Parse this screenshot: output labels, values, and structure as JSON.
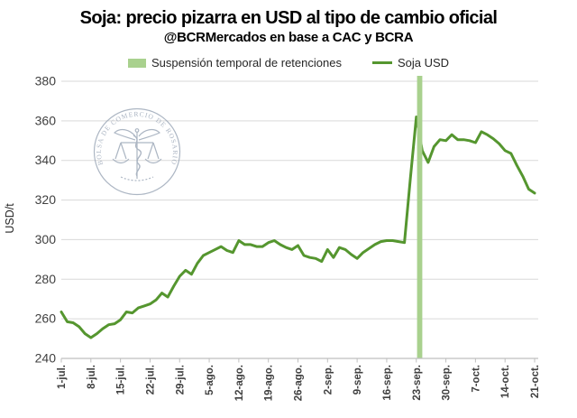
{
  "header": {
    "title": "Soja: precio pizarra en USD al tipo de cambio oficial",
    "subtitle": "@BCRMercados en base a CAC y BCRA"
  },
  "watermark": {
    "text": "BOLSA DE COMERCIO DE ROSARIO"
  },
  "colors": {
    "line": "#55962F",
    "band": "#A9D18E",
    "gridline": "#D9D9D9",
    "axis": "#BFBFBF",
    "tick": "#BFBFBF",
    "watermark": "#98A4B5"
  },
  "chart_data": {
    "type": "line",
    "title": "Soja: precio pizarra en USD al tipo de cambio oficial",
    "subtitle": "@BCRMercados en base a CAC y BCRA",
    "xlabel": "",
    "ylabel": "USD/t",
    "ylim": [
      240,
      380
    ],
    "yticks": [
      240,
      260,
      280,
      300,
      320,
      340,
      360,
      380
    ],
    "grid": true,
    "legend_position": "top",
    "xtick_every": 5,
    "xtick_labels": [
      "1-jul.",
      "8-jul.",
      "15-jul.",
      "22-jul.",
      "29-jul.",
      "5-ago.",
      "12-ago.",
      "19-ago.",
      "26-ago.",
      "2-sep.",
      "9-sep.",
      "16-sep.",
      "23-sep.",
      "30-sep.",
      "7-oct.",
      "14-oct.",
      "21-oct."
    ],
    "band": {
      "label": "Suspensión temporal de retenciones",
      "start_date": "23-sep",
      "end_date": "24-sep"
    },
    "series": [
      {
        "name": "Soja USD",
        "dates": [
          "1-jul",
          "2-jul",
          "3-jul",
          "4-jul",
          "7-jul",
          "8-jul",
          "9-jul",
          "10-jul",
          "11-jul",
          "14-jul",
          "15-jul",
          "16-jul",
          "17-jul",
          "18-jul",
          "21-jul",
          "22-jul",
          "23-jul",
          "24-jul",
          "25-jul",
          "28-jul",
          "29-jul",
          "30-jul",
          "31-jul",
          "1-ago",
          "4-ago",
          "5-ago",
          "6-ago",
          "7-ago",
          "8-ago",
          "11-ago",
          "12-ago",
          "13-ago",
          "14-ago",
          "15-ago",
          "18-ago",
          "19-ago",
          "20-ago",
          "21-ago",
          "22-ago",
          "25-ago",
          "26-ago",
          "27-ago",
          "28-ago",
          "29-ago",
          "1-sep",
          "2-sep",
          "3-sep",
          "4-sep",
          "5-sep",
          "8-sep",
          "9-sep",
          "10-sep",
          "11-sep",
          "12-sep",
          "15-sep",
          "16-sep",
          "17-sep",
          "18-sep",
          "19-sep",
          "22-sep",
          "23-sep",
          "24-sep",
          "25-sep",
          "26-sep",
          "29-sep",
          "30-sep",
          "1-oct",
          "2-oct",
          "3-oct",
          "6-oct",
          "7-oct",
          "8-oct",
          "9-oct",
          "10-oct",
          "13-oct",
          "14-oct",
          "15-oct",
          "16-oct",
          "17-oct",
          "20-oct",
          "21-oct"
        ],
        "values": [
          263.5,
          258.5,
          258,
          256,
          252.5,
          250.5,
          252.5,
          255,
          257,
          257.5,
          259.5,
          263.5,
          263,
          265.5,
          266.5,
          267.5,
          269.5,
          273,
          271,
          276.5,
          281.5,
          284.5,
          282.5,
          288,
          292,
          293.5,
          295,
          296.5,
          294.5,
          293.5,
          299.5,
          297.5,
          297.5,
          296.5,
          296.5,
          298.5,
          299.5,
          297.5,
          296,
          295,
          297,
          292,
          291,
          290.5,
          289,
          295,
          291,
          296,
          295,
          292.5,
          290.5,
          293.5,
          295.5,
          297.5,
          299,
          299.5,
          299.5,
          299,
          298.5,
          331,
          362,
          345,
          339,
          347,
          350.5,
          350,
          353,
          350.5,
          350.5,
          350,
          349,
          354.5,
          353,
          351,
          348.5,
          345,
          343.5,
          337.5,
          332,
          325.5,
          323.5
        ]
      }
    ]
  }
}
